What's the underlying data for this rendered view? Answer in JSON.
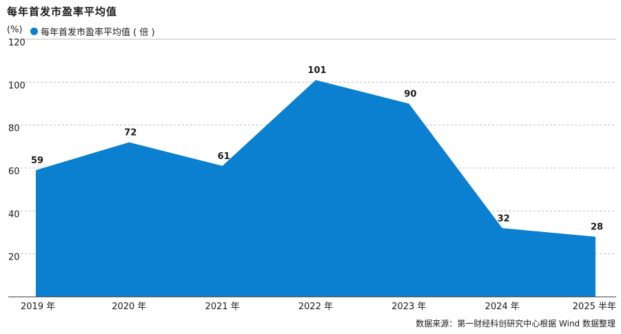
{
  "title": "每年首发市盈率平均值",
  "unit": "(%)",
  "source": "数据来源：第一财经科创研究中心根据 Wind 数据整理",
  "chart_data": {
    "type": "area",
    "categories": [
      "2019 年",
      "2020 年",
      "2021 年",
      "2022 年",
      "2023 年",
      "2024 年",
      "2025 半年"
    ],
    "series": [
      {
        "name": "每年首发市盈率平均值 ( 倍 )",
        "values": [
          59,
          72,
          61,
          101,
          90,
          32,
          28
        ]
      }
    ],
    "yticks": [
      120,
      100,
      80,
      60,
      40,
      20
    ],
    "ylim": [
      0,
      120
    ],
    "grid": true,
    "legend": "top-left",
    "colors": {
      "area": "#0b7fd0",
      "grid": "#bbbbbb"
    }
  }
}
